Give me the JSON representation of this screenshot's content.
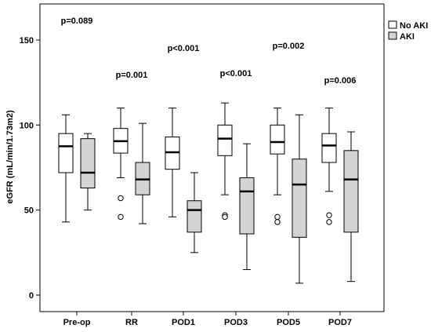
{
  "chart_data": {
    "type": "boxplot",
    "ylabel": "eGFR (mL/min/1.73m2)",
    "ylim": [
      0,
      160
    ],
    "yticks": [
      0,
      50,
      100,
      150
    ],
    "categories": [
      "Pre-op",
      "RR",
      "POD1",
      "POD3",
      "POD5",
      "POD7"
    ],
    "p_values": [
      "p=0.089",
      "p=0.001",
      "p<0.001",
      "p<0.001",
      "p=0.002",
      "p=0.006"
    ],
    "series": [
      {
        "name": "No AKI",
        "color": "#ffffff",
        "boxes": [
          {
            "min": 43,
            "q1": 72,
            "median": 87.5,
            "q3": 95,
            "max": 106,
            "outliers": []
          },
          {
            "min": 69,
            "q1": 83.5,
            "median": 90.5,
            "q3": 98,
            "max": 110,
            "outliers": [
              57,
              46
            ]
          },
          {
            "min": 46,
            "q1": 74,
            "median": 84,
            "q3": 93,
            "max": 110,
            "outliers": []
          },
          {
            "min": 59,
            "q1": 82,
            "median": 92,
            "q3": 100,
            "max": 113,
            "outliers": [
              47,
              46
            ]
          },
          {
            "min": 59,
            "q1": 83,
            "median": 90,
            "q3": 100,
            "max": 110,
            "outliers": [
              46,
              43
            ]
          },
          {
            "min": 61,
            "q1": 78,
            "median": 88,
            "q3": 95,
            "max": 110,
            "outliers": [
              47,
              43
            ]
          }
        ]
      },
      {
        "name": "AKI",
        "color": "#d3d3d3",
        "boxes": [
          {
            "min": 50,
            "q1": 63,
            "median": 72,
            "q3": 92,
            "max": 95,
            "outliers": []
          },
          {
            "min": 42,
            "q1": 59,
            "median": 68,
            "q3": 78,
            "max": 101,
            "outliers": []
          },
          {
            "min": 25,
            "q1": 37,
            "median": 50,
            "q3": 55.5,
            "max": 72,
            "outliers": []
          },
          {
            "min": 15,
            "q1": 36,
            "median": 61,
            "q3": 69,
            "max": 89,
            "outliers": []
          },
          {
            "min": 7,
            "q1": 34,
            "median": 65,
            "q3": 80,
            "max": 106,
            "outliers": []
          },
          {
            "min": 8,
            "q1": 37,
            "median": 68,
            "q3": 85,
            "max": 96,
            "outliers": []
          }
        ]
      }
    ],
    "legend_position": "top-right"
  }
}
